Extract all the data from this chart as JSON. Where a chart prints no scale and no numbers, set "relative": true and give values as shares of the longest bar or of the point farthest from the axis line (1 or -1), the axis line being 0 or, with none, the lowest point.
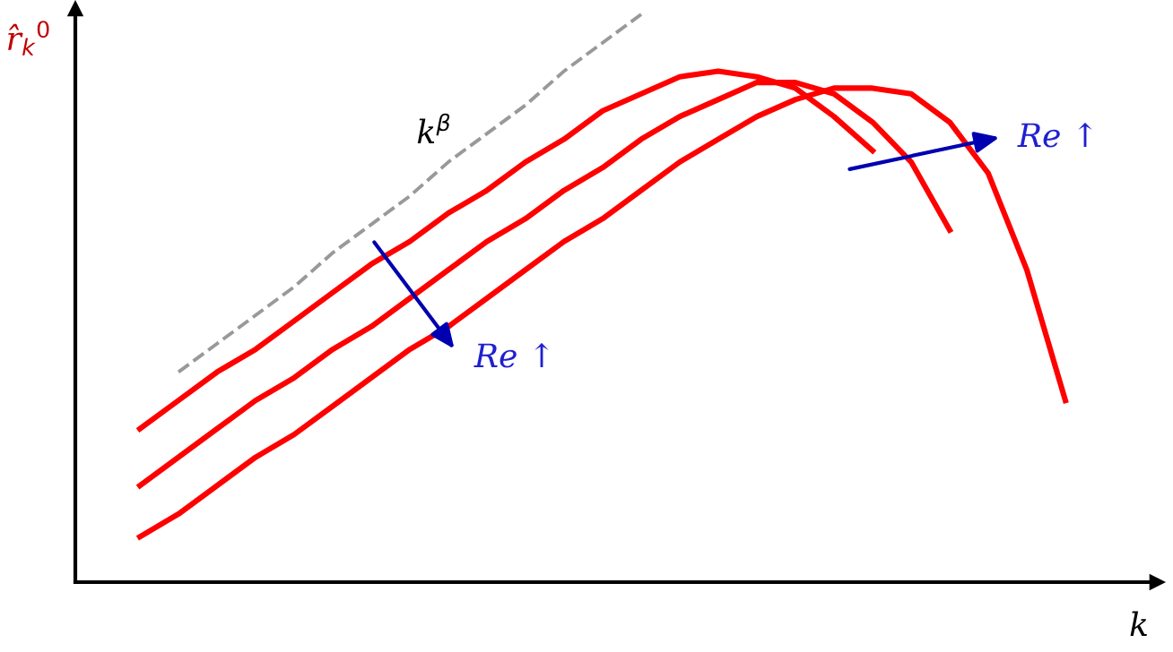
{
  "chart_data": {
    "type": "line",
    "relative": true,
    "xlabel": "k",
    "ylabel": "r̂$_{k}$$^{0}$",
    "categories": [
      null,
      null,
      null,
      null,
      null,
      null,
      null,
      null,
      null,
      null,
      null,
      null,
      null,
      null,
      null,
      null,
      null,
      null,
      null,
      null,
      null,
      null,
      null,
      null,
      null
    ],
    "series": [
      {
        "color": "#999999",
        "line_style": "dashed",
        "values": [
          null,
          0.37,
          0.42,
          0.47,
          0.52,
          0.58,
          0.63,
          0.68,
          0.74,
          0.79,
          0.84,
          0.9,
          0.95,
          1.0,
          null,
          null,
          null,
          null,
          null,
          null,
          null,
          null,
          null,
          null,
          null
        ]
      },
      {
        "color": "#ff0000",
        "line_style": "solid",
        "values": [
          0.27,
          0.32,
          0.37,
          0.41,
          0.46,
          0.51,
          0.56,
          0.6,
          0.65,
          0.69,
          0.74,
          0.78,
          0.83,
          0.86,
          0.89,
          0.9,
          0.89,
          0.87,
          0.82,
          0.76,
          null,
          null,
          null,
          null,
          null
        ]
      },
      {
        "color": "#ff0000",
        "line_style": "solid",
        "values": [
          0.17,
          0.22,
          0.27,
          0.32,
          0.36,
          0.41,
          0.45,
          0.5,
          0.55,
          0.6,
          0.64,
          0.69,
          0.73,
          0.78,
          0.82,
          0.85,
          0.88,
          0.88,
          0.86,
          0.81,
          0.74,
          0.62,
          null,
          null,
          null
        ]
      },
      {
        "color": "#ff0000",
        "line_style": "solid",
        "values": [
          0.08,
          0.12,
          0.17,
          0.22,
          0.26,
          0.31,
          0.36,
          0.41,
          0.45,
          0.5,
          0.55,
          0.6,
          0.64,
          0.69,
          0.74,
          0.78,
          0.82,
          0.85,
          0.87,
          0.87,
          0.86,
          0.81,
          0.72,
          0.55,
          0.32
        ]
      }
    ],
    "annotations": [
      "k$^{β}$",
      "Re ↑",
      "Re ↑"
    ],
    "marker": "none"
  }
}
